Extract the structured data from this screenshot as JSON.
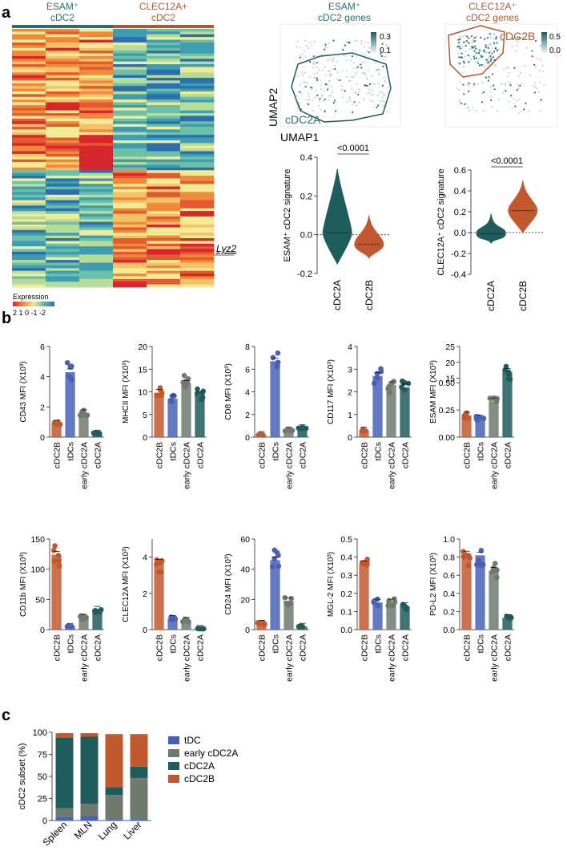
{
  "panels": {
    "a": "a",
    "b": "b",
    "c": "c"
  },
  "colors": {
    "cDC2B": "#c2582e",
    "tDC": "#4a60b8",
    "early_cDC2A": "#6e7a6c",
    "cDC2A": "#1f5c5c",
    "esam_text": "#2a6f6f",
    "clec_text": "#b0582e"
  },
  "heatmap": {
    "header_left": [
      "ESAM⁺",
      "cDC2"
    ],
    "header_right": [
      "CLEC12A+",
      "cDC2"
    ],
    "gene_label": "Lyz2",
    "legend_title": "Expression",
    "legend_ticks": "2 1 0 -1 -2"
  },
  "umap": {
    "left_title": [
      "ESAM⁺",
      "cDC2 genes"
    ],
    "right_title": [
      "CLEC12A⁺",
      "cDC2 genes"
    ],
    "left_scale": [
      "0.3",
      "0.1"
    ],
    "right_scale": [
      "0.5",
      "0.0"
    ],
    "left_region": "cDC2A",
    "right_region": "cDC2B",
    "xlabel": "UMAP1",
    "ylabel": "UMAP2"
  },
  "chart_data": [
    {
      "type": "violin",
      "ylabel": "ESAM⁺ cDC2 signature",
      "categories": [
        "cDC2A",
        "cDC2B"
      ],
      "medians": [
        0.01,
        -0.05
      ],
      "ranges": [
        [
          -0.15,
          0.34
        ],
        [
          -0.12,
          0.1
        ]
      ],
      "ylim": [
        -0.2,
        0.4
      ],
      "yticks": [
        "0.4",
        "0.2",
        "0.0",
        "-0.2"
      ],
      "annotation": "<0.0001"
    },
    {
      "type": "violin",
      "ylabel": "CLEC12A⁺ cDC2 signature",
      "categories": [
        "cDC2A",
        "cDC2B"
      ],
      "medians": [
        -0.01,
        0.21
      ],
      "ranges": [
        [
          -0.1,
          0.18
        ],
        [
          0.0,
          0.5
        ]
      ],
      "ylim": [
        -0.4,
        0.6
      ],
      "yticks": [
        "0.6",
        "0.4",
        "0.2",
        "0.0",
        "-0.2",
        "-0.4"
      ],
      "annotation": "<0.0001"
    },
    {
      "type": "bar",
      "ylabel": "CD43 MFI (X10³)",
      "categories": [
        "cDC2B",
        "tDCs",
        "early cDC2A",
        "cDC2A"
      ],
      "values": [
        0.9,
        4.3,
        1.6,
        0.25
      ],
      "ylim": [
        0,
        6
      ],
      "yticks": [
        "0",
        "2",
        "4",
        "6"
      ]
    },
    {
      "type": "bar",
      "ylabel": "MHCII MFI (X10³)",
      "categories": [
        "cDC2B",
        "tDCs",
        "early cDC2A",
        "cDC2A"
      ],
      "values": [
        9.8,
        8.5,
        11.8,
        9.3
      ],
      "ylim": [
        0,
        20
      ],
      "yticks": [
        "0",
        "5",
        "10",
        "15",
        "20"
      ]
    },
    {
      "type": "bar",
      "ylabel": "CD8 MFI (X10³)",
      "categories": [
        "cDC2B",
        "tDCs",
        "early cDC2A",
        "cDC2A"
      ],
      "values": [
        0.2,
        6.7,
        0.6,
        0.8
      ],
      "ylim": [
        0,
        8
      ],
      "yticks": [
        "0",
        "2",
        "4",
        "6",
        "8"
      ]
    },
    {
      "type": "bar",
      "ylabel": "CD117 MFI (X10³)",
      "categories": [
        "cDC2B",
        "tDCs",
        "early cDC2A",
        "cDC2A"
      ],
      "values": [
        0.3,
        2.7,
        2.3,
        2.2
      ],
      "ylim": [
        0,
        4
      ],
      "yticks": [
        "0",
        "1",
        "2",
        "3",
        "4"
      ]
    },
    {
      "type": "bar",
      "ylabel": "ESAM MFI (X10³)",
      "categories": [
        "cDC2B",
        "tDCs",
        "early cDC2A",
        "cDC2A"
      ],
      "values": [
        0.2,
        0.17,
        0.33,
        17
      ],
      "ylim": [
        0,
        25
      ],
      "yticks": [
        "0.00",
        "0.25",
        "0.50",
        "15",
        "20",
        "25"
      ],
      "axis_break": true
    },
    {
      "type": "bar",
      "ylabel": "CD11b MFI (X10³)",
      "categories": [
        "cDC2B",
        "tDCs",
        "early cDC2A",
        "cDC2A"
      ],
      "values": [
        124,
        5,
        20,
        33
      ],
      "ylim": [
        0,
        150
      ],
      "yticks": [
        "0",
        "50",
        "100",
        "150"
      ]
    },
    {
      "type": "bar",
      "ylabel": "CLEC12A MFI (X10³)",
      "categories": [
        "cDC2B",
        "tDCs",
        "early cDC2A",
        "cDC2A"
      ],
      "values": [
        3.7,
        0.6,
        0.5,
        0.05
      ],
      "ylim": [
        0,
        5
      ],
      "yticks": [
        "0",
        "2",
        "4"
      ]
    },
    {
      "type": "bar",
      "ylabel": "CD24 MFI (X10³)",
      "categories": [
        "cDC2B",
        "tDCs",
        "early cDC2A",
        "cDC2A"
      ],
      "values": [
        4,
        46,
        19,
        2
      ],
      "ylim": [
        0,
        60
      ],
      "yticks": [
        "0",
        "20",
        "40",
        "60"
      ]
    },
    {
      "type": "bar",
      "ylabel": "MGL-2 MFI (X10³)",
      "categories": [
        "cDC2B",
        "tDCs",
        "early cDC2A",
        "cDC2A"
      ],
      "values": [
        0.36,
        0.15,
        0.15,
        0.13
      ],
      "ylim": [
        0,
        0.5
      ],
      "yticks": [
        "0.0",
        "0.1",
        "0.2",
        "0.3",
        "0.4",
        "0.5"
      ]
    },
    {
      "type": "bar",
      "ylabel": "PD-L2 MFI (X10³)",
      "categories": [
        "cDC2B",
        "tDCs",
        "early cDC2A",
        "cDC2A"
      ],
      "values": [
        0.83,
        0.82,
        0.65,
        0.13
      ],
      "ylim": [
        0,
        1.0
      ],
      "yticks": [
        "0.0",
        "0.2",
        "0.4",
        "0.6",
        "0.8",
        "1.0"
      ]
    },
    {
      "type": "stacked_bar",
      "ylabel": "cDC2 subset (%)",
      "categories": [
        "Spleen",
        "MLN",
        "Lung",
        "Liver"
      ],
      "ylim": [
        0,
        100
      ],
      "yticks": [
        "0",
        "25",
        "50",
        "75",
        "100"
      ],
      "series": [
        {
          "name": "tDC",
          "values": [
            4,
            5,
            1,
            1
          ]
        },
        {
          "name": "early cDC2A",
          "values": [
            10,
            14,
            28,
            47
          ]
        },
        {
          "name": "cDC2A",
          "values": [
            80,
            76,
            9,
            13
          ]
        },
        {
          "name": "cDC2B",
          "values": [
            5,
            4,
            60,
            37
          ]
        }
      ]
    }
  ]
}
